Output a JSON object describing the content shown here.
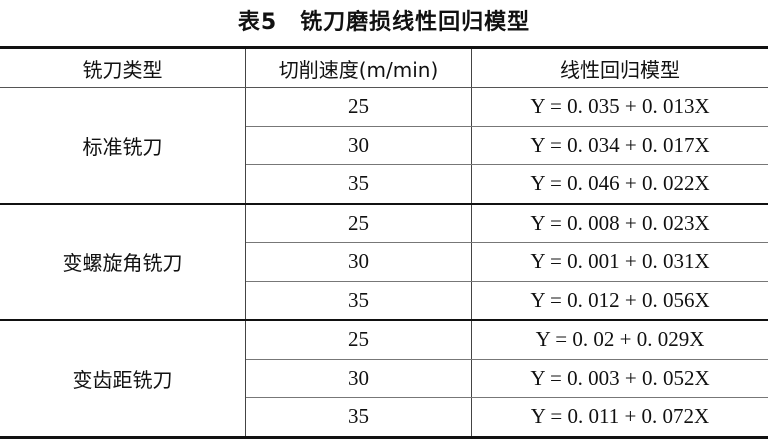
{
  "title": "表5　铣刀磨损线性回归模型",
  "headers": [
    "铣刀类型",
    "切削速度(m/min)",
    "线性回归模型"
  ],
  "groups": [
    {
      "type": "标准铣刀",
      "rows": [
        {
          "speed": "25",
          "model": "Y = 0. 035 + 0. 013X"
        },
        {
          "speed": "30",
          "model": "Y = 0. 034 + 0. 017X"
        },
        {
          "speed": "35",
          "model": "Y = 0. 046 + 0. 022X"
        }
      ]
    },
    {
      "type": "变螺旋角铣刀",
      "rows": [
        {
          "speed": "25",
          "model": "Y = 0. 008 + 0. 023X"
        },
        {
          "speed": "30",
          "model": "Y = 0. 001 + 0. 031X"
        },
        {
          "speed": "35",
          "model": "Y = 0. 012 + 0. 056X"
        }
      ]
    },
    {
      "type": "变齿距铣刀",
      "rows": [
        {
          "speed": "25",
          "model": "Y = 0. 02 + 0. 029X"
        },
        {
          "speed": "30",
          "model": "Y = 0. 003 + 0. 052X"
        },
        {
          "speed": "35",
          "model": "Y = 0. 011 + 0. 072X"
        }
      ]
    }
  ]
}
